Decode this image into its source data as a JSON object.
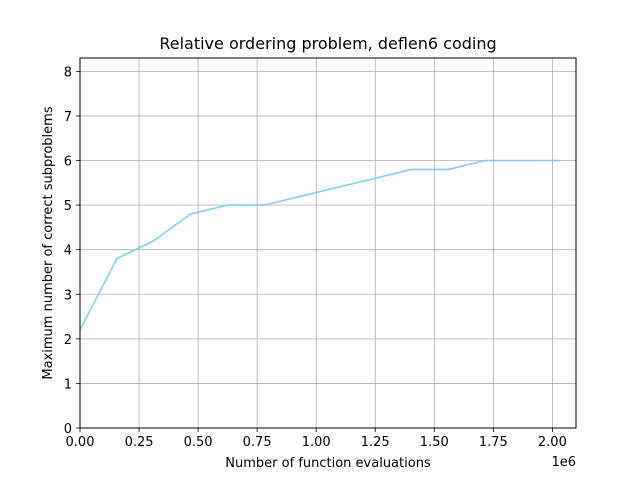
{
  "chart_data": {
    "type": "line",
    "title": "Relative ordering problem, deflen6 coding",
    "xlabel": "Number of function evaluations",
    "ylabel": "Maximum number of correct subproblems",
    "x_offset_label": "1e6",
    "xlim": [
      0,
      2100000
    ],
    "ylim": [
      0,
      8.3
    ],
    "xticks": [
      0,
      250000,
      500000,
      750000,
      1000000,
      1250000,
      1500000,
      1750000,
      2000000
    ],
    "xtick_labels": [
      "0.00",
      "0.25",
      "0.50",
      "0.75",
      "1.00",
      "1.25",
      "1.50",
      "1.75",
      "2.00"
    ],
    "yticks": [
      0,
      1,
      2,
      3,
      4,
      5,
      6,
      7,
      8
    ],
    "ytick_labels": [
      "0",
      "1",
      "2",
      "3",
      "4",
      "5",
      "6",
      "7",
      "8"
    ],
    "grid": true,
    "series": [
      {
        "color": "#87ceeb",
        "x": [
          0,
          156000,
          312000,
          468000,
          624000,
          780000,
          936000,
          1092000,
          1248000,
          1404000,
          1560000,
          1716000,
          1872000,
          2028000
        ],
        "y": [
          2.2,
          3.8,
          4.2,
          4.8,
          5.0,
          5.0,
          5.2,
          5.4,
          5.6,
          5.8,
          5.8,
          6.0,
          6.0,
          6.0
        ]
      }
    ]
  }
}
